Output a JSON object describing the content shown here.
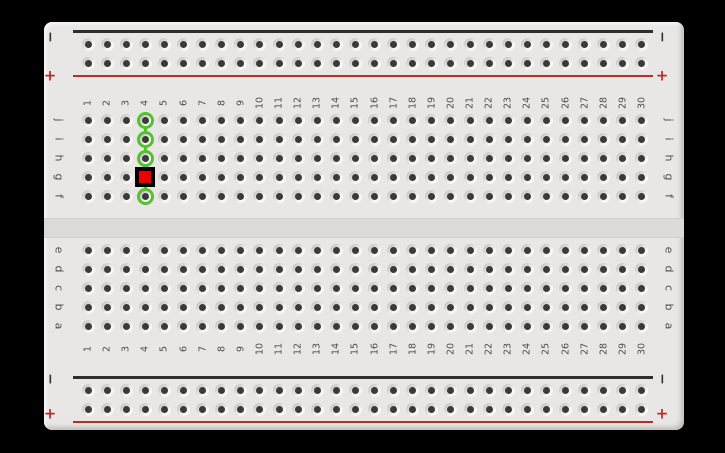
{
  "app": {
    "background": "#000000"
  },
  "board": {
    "columns": [
      "1",
      "2",
      "3",
      "4",
      "5",
      "6",
      "7",
      "8",
      "9",
      "10",
      "11",
      "12",
      "13",
      "14",
      "15",
      "16",
      "17",
      "18",
      "19",
      "20",
      "21",
      "22",
      "23",
      "24",
      "25",
      "26",
      "27",
      "28",
      "29",
      "30"
    ],
    "top_bank_rows": [
      "j",
      "i",
      "h",
      "g",
      "f"
    ],
    "bottom_bank_rows": [
      "e",
      "d",
      "c",
      "b",
      "a"
    ],
    "rails": {
      "negative_label": "−",
      "positive_label": "+"
    },
    "highlight": {
      "column": "4",
      "connected_rows_highlighted": [
        "j",
        "i",
        "h",
        "f"
      ],
      "selected_row": "g"
    },
    "colors": {
      "board_body": "#e8e7e5",
      "hole_center": "#3a3a3a",
      "negative_rail_line": "#2e2e2e",
      "positive_rail_line": "#c02a22",
      "labels": "#4f4f4f",
      "highlight_green": "#54c22c",
      "selected_fill": "#ee0000",
      "selected_border": "#000000"
    }
  }
}
